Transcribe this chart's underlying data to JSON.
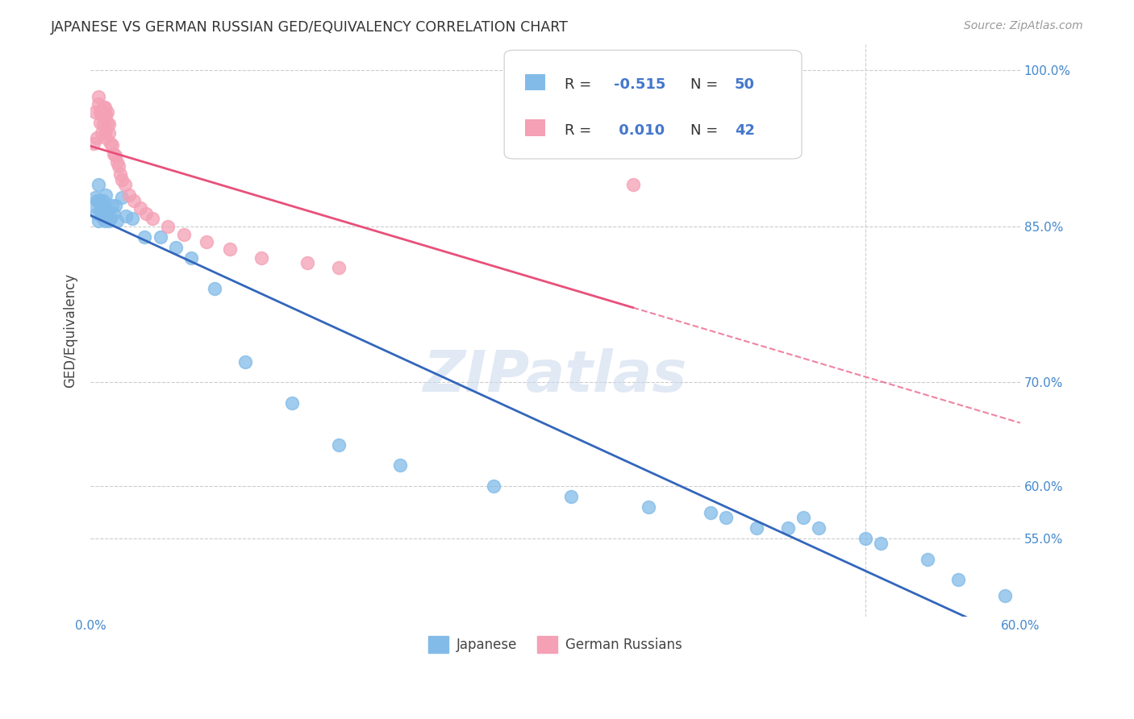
{
  "title": "JAPANESE VS GERMAN RUSSIAN GED/EQUIVALENCY CORRELATION CHART",
  "source": "Source: ZipAtlas.com",
  "ylabel": "GED/Equivalency",
  "xmin": 0.0,
  "xmax": 0.6,
  "ymin": 0.475,
  "ymax": 1.025,
  "ytick_vals": [
    0.55,
    0.6,
    0.7,
    0.85,
    1.0
  ],
  "ytick_labels": [
    "55.0%",
    "60.0%",
    "70.0%",
    "85.0%",
    "100.0%"
  ],
  "color_japanese": "#82BBE8",
  "color_german": "#F4A0B5",
  "color_line_japanese": "#3366BB",
  "color_line_german": "#E8507A",
  "japanese_x": [
    0.002,
    0.003,
    0.004,
    0.004,
    0.005,
    0.005,
    0.006,
    0.006,
    0.007,
    0.007,
    0.007,
    0.008,
    0.008,
    0.009,
    0.009,
    0.01,
    0.01,
    0.011,
    0.012,
    0.013,
    0.014,
    0.015,
    0.016,
    0.017,
    0.02,
    0.023,
    0.027,
    0.035,
    0.045,
    0.055,
    0.065,
    0.08,
    0.1,
    0.13,
    0.16,
    0.2,
    0.26,
    0.31,
    0.36,
    0.4,
    0.41,
    0.43,
    0.45,
    0.46,
    0.47,
    0.5,
    0.51,
    0.54,
    0.56,
    0.59
  ],
  "japanese_y": [
    0.87,
    0.878,
    0.875,
    0.862,
    0.855,
    0.89,
    0.865,
    0.875,
    0.87,
    0.86,
    0.868,
    0.858,
    0.875,
    0.855,
    0.868,
    0.86,
    0.88,
    0.865,
    0.855,
    0.858,
    0.87,
    0.862,
    0.87,
    0.855,
    0.878,
    0.86,
    0.858,
    0.84,
    0.84,
    0.83,
    0.82,
    0.79,
    0.72,
    0.68,
    0.64,
    0.62,
    0.6,
    0.59,
    0.58,
    0.575,
    0.57,
    0.56,
    0.56,
    0.57,
    0.56,
    0.55,
    0.545,
    0.53,
    0.51,
    0.495
  ],
  "german_x": [
    0.002,
    0.003,
    0.004,
    0.005,
    0.005,
    0.006,
    0.006,
    0.007,
    0.007,
    0.008,
    0.008,
    0.009,
    0.009,
    0.01,
    0.01,
    0.01,
    0.011,
    0.011,
    0.012,
    0.012,
    0.013,
    0.014,
    0.015,
    0.016,
    0.017,
    0.018,
    0.019,
    0.02,
    0.022,
    0.025,
    0.028,
    0.032,
    0.036,
    0.04,
    0.05,
    0.06,
    0.075,
    0.09,
    0.11,
    0.14,
    0.16,
    0.35
  ],
  "german_y": [
    0.93,
    0.96,
    0.935,
    0.968,
    0.975,
    0.95,
    0.96,
    0.94,
    0.958,
    0.948,
    0.965,
    0.955,
    0.965,
    0.935,
    0.942,
    0.958,
    0.95,
    0.96,
    0.94,
    0.948,
    0.93,
    0.928,
    0.92,
    0.918,
    0.912,
    0.908,
    0.9,
    0.895,
    0.89,
    0.88,
    0.875,
    0.868,
    0.862,
    0.858,
    0.85,
    0.842,
    0.835,
    0.828,
    0.82,
    0.815,
    0.81,
    0.89
  ],
  "watermark": "ZIPatlas",
  "background_color": "#FFFFFF",
  "grid_color": "#CCCCCC"
}
